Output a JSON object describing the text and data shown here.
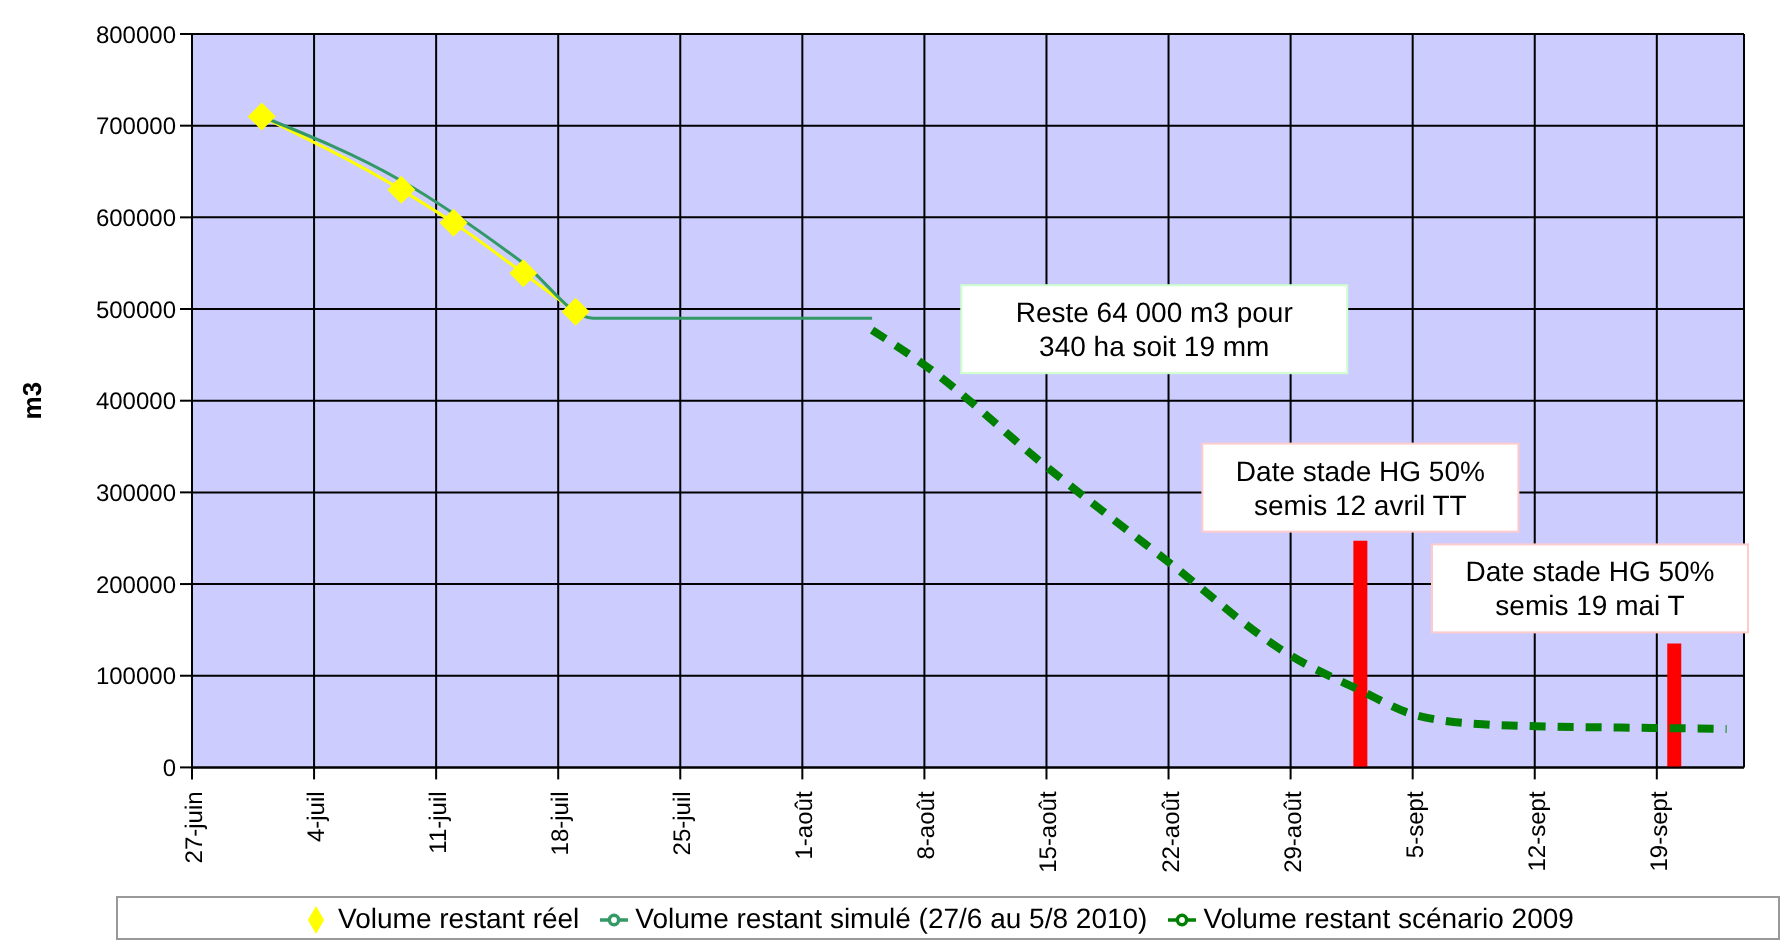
{
  "chart_data": {
    "type": "line",
    "ylabel": "m3",
    "xlim": [
      "2010-06-27",
      "2010-09-24"
    ],
    "xticks": [
      {
        "value": "2010-06-27",
        "label": "27-juin"
      },
      {
        "value": "2010-07-04",
        "label": "4-juil"
      },
      {
        "value": "2010-07-11",
        "label": "11-juil"
      },
      {
        "value": "2010-07-18",
        "label": "18-juil"
      },
      {
        "value": "2010-07-25",
        "label": "25-juil"
      },
      {
        "value": "2010-08-01",
        "label": "1-août"
      },
      {
        "value": "2010-08-08",
        "label": "8-août"
      },
      {
        "value": "2010-08-15",
        "label": "15-août"
      },
      {
        "value": "2010-08-22",
        "label": "22-août"
      },
      {
        "value": "2010-08-29",
        "label": "29-août"
      },
      {
        "value": "2010-09-05",
        "label": "5-sept"
      },
      {
        "value": "2010-09-12",
        "label": "12-sept"
      },
      {
        "value": "2010-09-19",
        "label": "19-sept"
      }
    ],
    "ylim": [
      0,
      800000
    ],
    "yticks": [
      0,
      100000,
      200000,
      300000,
      400000,
      500000,
      600000,
      700000,
      800000
    ],
    "grid": true,
    "legend": "bottom",
    "series": [
      {
        "name": "Volume restant réel",
        "color": "#ffff00",
        "marker": "diamond",
        "line_style": "solid",
        "x": [
          "2010-07-01",
          "2010-07-09",
          "2010-07-12",
          "2010-07-16",
          "2010-07-19"
        ],
        "values": [
          710000,
          630000,
          594000,
          539000,
          497000
        ]
      },
      {
        "name": "Volume restant simulé (27/6 au 5/8 2010)",
        "color": "#339966",
        "marker": "none",
        "line_style": "solid",
        "x": [
          "2010-07-01",
          "2010-07-09",
          "2010-07-16",
          "2010-07-20",
          "2010-08-05"
        ],
        "values": [
          710000,
          640000,
          550000,
          490000,
          490000
        ]
      },
      {
        "name": "Volume restant scénario 2009",
        "color": "#008000",
        "marker": "none",
        "line_style": "dashed",
        "x": [
          "2010-08-05",
          "2010-08-08",
          "2010-08-15",
          "2010-08-22",
          "2010-08-29",
          "2010-09-02",
          "2010-09-05",
          "2010-09-09",
          "2010-09-12",
          "2010-09-19",
          "2010-09-23"
        ],
        "values": [
          477000,
          439000,
          328000,
          224000,
          122000,
          84000,
          58000,
          47000,
          45000,
          43000,
          42000
        ]
      }
    ],
    "ref_lines": [
      {
        "axis": "x",
        "value": "2010-09-02",
        "label": "Date stade HG 50%\nsemis 12 avril TT",
        "color": "#ff0000"
      },
      {
        "axis": "x",
        "value": "2010-09-20",
        "label": "Date stade HG 50%\nsemis 19 mai T",
        "color": "#ff0000"
      }
    ],
    "annotations": [
      "Reste 64 000 m3 pour\n340 ha soit 19 mm"
    ]
  }
}
